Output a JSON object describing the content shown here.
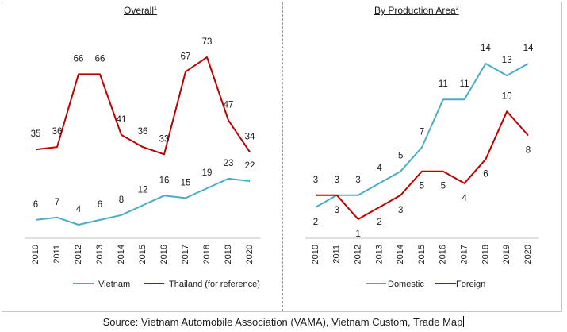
{
  "chart_data": [
    {
      "type": "line",
      "title": "Overall",
      "title_sup": "1",
      "categories": [
        "2010",
        "2011",
        "2012",
        "2013",
        "2014",
        "2015",
        "2016",
        "2017",
        "2018",
        "2019",
        "2020"
      ],
      "series": [
        {
          "name": "Vietnam",
          "color": "#4bacc6",
          "values": [
            6,
            7,
            4,
            6,
            8,
            12,
            16,
            15,
            19,
            23,
            22
          ]
        },
        {
          "name": "Thailand (for reference)",
          "color": "#c00000",
          "values": [
            35,
            36,
            66,
            66,
            41,
            36,
            33,
            67,
            73,
            47,
            34
          ]
        }
      ],
      "xlabel": "",
      "ylabel": "",
      "grid": false,
      "legend": "bottom"
    },
    {
      "type": "line",
      "title": "By Production Area",
      "title_sup": "2",
      "categories": [
        "2010",
        "2011",
        "2012",
        "2013",
        "2014",
        "2015",
        "2016",
        "2017",
        "2018",
        "2019",
        "2020"
      ],
      "series": [
        {
          "name": "Domestic",
          "color": "#4bacc6",
          "values": [
            2,
            3,
            3,
            4,
            5,
            7,
            11,
            11,
            14,
            13,
            14
          ]
        },
        {
          "name": "Foreign",
          "color": "#c00000",
          "values": [
            3,
            3,
            1,
            2,
            3,
            5,
            5,
            4,
            6,
            10,
            8
          ]
        }
      ],
      "xlabel": "",
      "ylabel": "",
      "grid": false,
      "legend": "bottom"
    }
  ],
  "source": "Source: Vietnam Automobile Association (VAMA), Vietnam Custom, Trade Map"
}
